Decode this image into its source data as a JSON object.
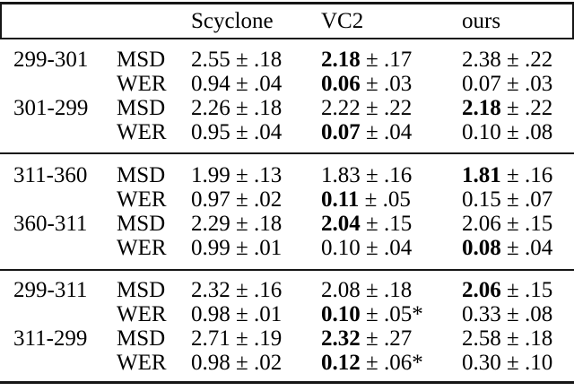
{
  "colors": {
    "background": "#ffffff",
    "text": "#000000",
    "rule": "#161616"
  },
  "table": {
    "plus_minus": "±",
    "star_symbol": "*",
    "columns": [
      "",
      "",
      "Scyclone",
      "VC2",
      "ours"
    ],
    "sections": [
      {
        "rows": [
          {
            "pair": "299-301",
            "metric": "MSD",
            "cells": [
              {
                "mean": "2.55",
                "err": ".18",
                "bold": false,
                "star": false
              },
              {
                "mean": "2.18",
                "err": ".17",
                "bold": true,
                "star": false
              },
              {
                "mean": "2.38",
                "err": ".22",
                "bold": false,
                "star": false
              }
            ]
          },
          {
            "pair": "",
            "metric": "WER",
            "cells": [
              {
                "mean": "0.94",
                "err": ".04",
                "bold": false,
                "star": false
              },
              {
                "mean": "0.06",
                "err": ".03",
                "bold": true,
                "star": false
              },
              {
                "mean": "0.07",
                "err": ".03",
                "bold": false,
                "star": false
              }
            ]
          },
          {
            "pair": "301-299",
            "metric": "MSD",
            "cells": [
              {
                "mean": "2.26",
                "err": ".18",
                "bold": false,
                "star": false
              },
              {
                "mean": "2.22",
                "err": ".22",
                "bold": false,
                "star": false
              },
              {
                "mean": "2.18",
                "err": ".22",
                "bold": true,
                "star": false
              }
            ]
          },
          {
            "pair": "",
            "metric": "WER",
            "cells": [
              {
                "mean": "0.95",
                "err": ".04",
                "bold": false,
                "star": false
              },
              {
                "mean": "0.07",
                "err": ".04",
                "bold": true,
                "star": false
              },
              {
                "mean": "0.10",
                "err": ".08",
                "bold": false,
                "star": false
              }
            ]
          }
        ]
      },
      {
        "rows": [
          {
            "pair": "311-360",
            "metric": "MSD",
            "cells": [
              {
                "mean": "1.99",
                "err": ".13",
                "bold": false,
                "star": false
              },
              {
                "mean": "1.83",
                "err": ".16",
                "bold": false,
                "star": false
              },
              {
                "mean": "1.81",
                "err": ".16",
                "bold": true,
                "star": false
              }
            ]
          },
          {
            "pair": "",
            "metric": "WER",
            "cells": [
              {
                "mean": "0.97",
                "err": ".02",
                "bold": false,
                "star": false
              },
              {
                "mean": "0.11",
                "err": ".05",
                "bold": true,
                "star": false
              },
              {
                "mean": "0.15",
                "err": ".07",
                "bold": false,
                "star": false
              }
            ]
          },
          {
            "pair": "360-311",
            "metric": "MSD",
            "cells": [
              {
                "mean": "2.29",
                "err": ".18",
                "bold": false,
                "star": false
              },
              {
                "mean": "2.04",
                "err": ".15",
                "bold": true,
                "star": false
              },
              {
                "mean": "2.06",
                "err": ".15",
                "bold": false,
                "star": false
              }
            ]
          },
          {
            "pair": "",
            "metric": "WER",
            "cells": [
              {
                "mean": "0.99",
                "err": ".01",
                "bold": false,
                "star": false
              },
              {
                "mean": "0.10",
                "err": ".04",
                "bold": false,
                "star": false
              },
              {
                "mean": "0.08",
                "err": ".04",
                "bold": true,
                "star": false
              }
            ]
          }
        ]
      },
      {
        "rows": [
          {
            "pair": "299-311",
            "metric": "MSD",
            "cells": [
              {
                "mean": "2.32",
                "err": ".16",
                "bold": false,
                "star": false
              },
              {
                "mean": "2.08",
                "err": ".18",
                "bold": false,
                "star": false
              },
              {
                "mean": "2.06",
                "err": ".15",
                "bold": true,
                "star": false
              }
            ]
          },
          {
            "pair": "",
            "metric": "WER",
            "cells": [
              {
                "mean": "0.98",
                "err": ".01",
                "bold": false,
                "star": false
              },
              {
                "mean": "0.10",
                "err": ".05",
                "bold": true,
                "star": true
              },
              {
                "mean": "0.33",
                "err": ".08",
                "bold": false,
                "star": false
              }
            ]
          },
          {
            "pair": "311-299",
            "metric": "MSD",
            "cells": [
              {
                "mean": "2.71",
                "err": ".19",
                "bold": false,
                "star": false
              },
              {
                "mean": "2.32",
                "err": ".27",
                "bold": true,
                "star": false
              },
              {
                "mean": "2.58",
                "err": ".18",
                "bold": false,
                "star": false
              }
            ]
          },
          {
            "pair": "",
            "metric": "WER",
            "cells": [
              {
                "mean": "0.98",
                "err": ".02",
                "bold": false,
                "star": false
              },
              {
                "mean": "0.12",
                "err": ".06",
                "bold": true,
                "star": true
              },
              {
                "mean": "0.30",
                "err": ".10",
                "bold": false,
                "star": false
              }
            ]
          }
        ]
      }
    ]
  }
}
